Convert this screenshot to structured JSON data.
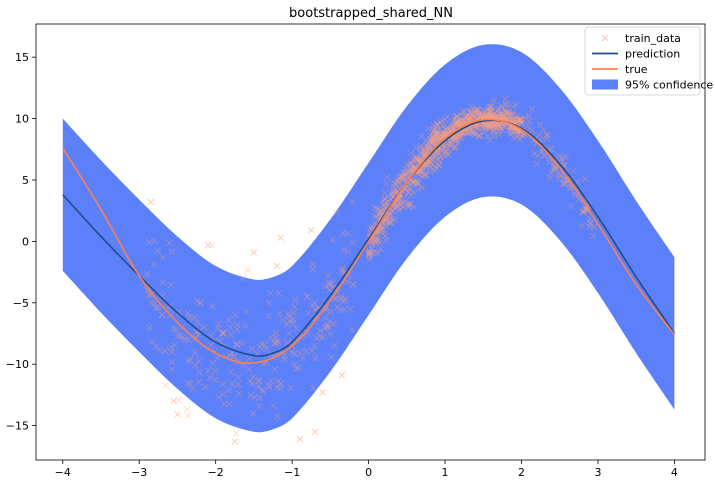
{
  "chart_data": {
    "type": "line",
    "title": "bootstrapped_shared_NN",
    "xlabel": "",
    "ylabel": "",
    "xlim": [
      -4.35,
      4.4
    ],
    "ylim": [
      -17.8,
      17.7
    ],
    "x_ticks": [
      -4,
      -3,
      -2,
      -1,
      0,
      1,
      2,
      3,
      4
    ],
    "y_ticks": [
      -15,
      -10,
      -5,
      0,
      5,
      10,
      15
    ],
    "grid": false,
    "legend_position": "top-right",
    "series": [
      {
        "name": "train_data",
        "kind": "scatter",
        "color": "#ffa07a",
        "marker": "x",
        "sample_points": [
          [
            -2.85,
            3.2
          ],
          [
            -2.1,
            -0.3
          ],
          [
            -1.5,
            -0.9
          ],
          [
            -1.15,
            0.3
          ],
          [
            -1.2,
            -2.0
          ],
          [
            -0.75,
            0.9
          ],
          [
            -2.55,
            -13.0
          ],
          [
            -2.5,
            -14.1
          ],
          [
            -1.75,
            -16.3
          ],
          [
            -0.9,
            -16.1
          ],
          [
            -0.7,
            -15.5
          ],
          [
            -0.6,
            -12.3
          ],
          [
            -0.35,
            -10.9
          ],
          [
            -2.2,
            -5.0
          ],
          [
            -1.9,
            -7.5
          ],
          [
            -1.3,
            -11.8
          ],
          [
            -0.8,
            -4.5
          ],
          [
            -2.7,
            -6.0
          ],
          [
            -1.0,
            -8.5
          ],
          [
            -0.2,
            -3.5
          ],
          [
            0.1,
            0.8
          ],
          [
            0.4,
            3.5
          ],
          [
            0.8,
            6.5
          ],
          [
            1.2,
            8.5
          ],
          [
            1.6,
            9.8
          ],
          [
            2.0,
            9.6
          ],
          [
            2.3,
            7.0
          ],
          [
            2.6,
            5.0
          ],
          [
            2.9,
            1.5
          ]
        ]
      },
      {
        "name": "prediction",
        "kind": "line",
        "color": "#1f4e8c",
        "x": [
          -4.0,
          -3.5,
          -3.0,
          -2.5,
          -2.0,
          -1.5,
          -1.25,
          -1.0,
          -0.5,
          0.0,
          0.5,
          1.0,
          1.5,
          2.0,
          2.5,
          3.0,
          3.5,
          4.0
        ],
        "y": [
          3.8,
          0.4,
          -2.8,
          -5.8,
          -8.2,
          -9.3,
          -9.1,
          -8.2,
          -4.4,
          0.2,
          4.8,
          8.2,
          9.8,
          9.2,
          6.3,
          2.0,
          -2.9,
          -7.5
        ]
      },
      {
        "name": "true",
        "kind": "line",
        "color": "#ff7f50",
        "x": [
          -4.0,
          -3.5,
          -3.0,
          -2.5,
          -2.0,
          -1.5,
          -1.0,
          -0.5,
          0.0,
          0.5,
          1.0,
          1.5,
          2.0,
          2.5,
          3.0,
          3.5,
          4.0
        ],
        "y": [
          7.6,
          2.6,
          -2.8,
          -6.6,
          -9.1,
          -9.9,
          -8.5,
          -4.8,
          0.0,
          4.8,
          8.4,
          9.9,
          9.1,
          6.0,
          1.4,
          -3.5,
          -7.6
        ]
      },
      {
        "name": "95% confidence",
        "kind": "band",
        "color": "#5b80fa",
        "offset": 6.2
      }
    ]
  }
}
